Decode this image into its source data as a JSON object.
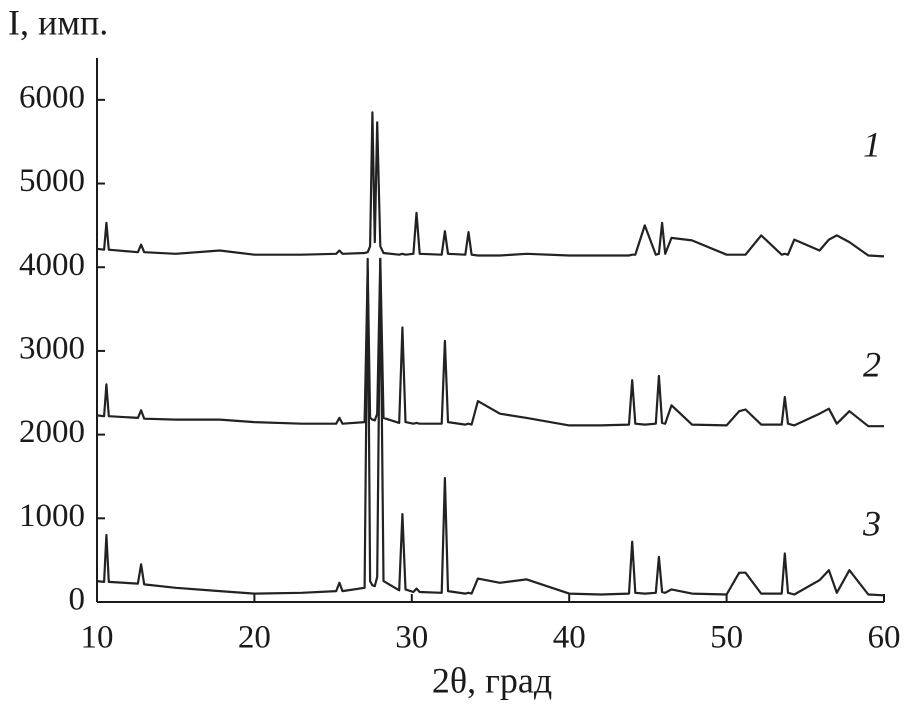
{
  "chart_data": {
    "type": "line",
    "y_label": "I, имп.",
    "x_label": "2θ, град",
    "xlim": [
      10,
      60
    ],
    "xticks": [
      10,
      20,
      30,
      40,
      50,
      60
    ],
    "ylim": [
      0,
      6500
    ],
    "yticks": [
      0,
      1000,
      2000,
      3000,
      4000,
      5000,
      6000
    ],
    "x": [
      10,
      10.45,
      10.6,
      10.75,
      12.6,
      12.8,
      13.0,
      15,
      17.8,
      20,
      23,
      25.2,
      25.4,
      25.6,
      27.0,
      27.2,
      27.35,
      27.5,
      27.65,
      27.8,
      28.0,
      28.2,
      29.2,
      29.4,
      29.6,
      30.1,
      30.3,
      30.5,
      31.9,
      32.1,
      32.3,
      33.4,
      33.6,
      33.8,
      34.2,
      35.6,
      37.3,
      40,
      42,
      43.8,
      44.0,
      44.2,
      44.8,
      45.5,
      45.7,
      45.9,
      46.1,
      46.5,
      47.8,
      50,
      50.8,
      51.2,
      52.2,
      53.5,
      53.7,
      53.9,
      54.3,
      55.9,
      56.5,
      57.0,
      57.8,
      59,
      60
    ],
    "series": [
      {
        "name": "1",
        "color": "#222222",
        "values": [
          4220,
          4210,
          4530,
          4210,
          4180,
          4270,
          4180,
          4160,
          4200,
          4150,
          4150,
          4160,
          4200,
          4160,
          4170,
          4180,
          4250,
          5850,
          4300,
          5730,
          4250,
          4170,
          4150,
          4160,
          4150,
          4160,
          4650,
          4160,
          4150,
          4430,
          4160,
          4150,
          4420,
          4150,
          4140,
          4140,
          4160,
          4140,
          4140,
          4140,
          4150,
          4150,
          4500,
          4150,
          4160,
          4530,
          4160,
          4350,
          4320,
          4150,
          4150,
          4150,
          4380,
          4150,
          4160,
          4150,
          4330,
          4200,
          4330,
          4380,
          4300,
          4140,
          4130
        ]
      },
      {
        "name": "2",
        "color": "#222222",
        "values": [
          2230,
          2220,
          2600,
          2220,
          2200,
          2290,
          2190,
          2180,
          2180,
          2150,
          2130,
          2130,
          2200,
          2130,
          2150,
          3980,
          2200,
          2180,
          2170,
          2250,
          4100,
          2200,
          2140,
          3280,
          2150,
          2130,
          2140,
          2130,
          2130,
          3120,
          2150,
          2120,
          2130,
          2120,
          2400,
          2250,
          2200,
          2110,
          2110,
          2120,
          2650,
          2130,
          2120,
          2130,
          2700,
          2140,
          2130,
          2350,
          2120,
          2110,
          2280,
          2300,
          2120,
          2120,
          2450,
          2130,
          2110,
          2250,
          2310,
          2130,
          2280,
          2100,
          2100
        ]
      },
      {
        "name": "3",
        "color": "#222222",
        "values": [
          250,
          240,
          800,
          240,
          220,
          450,
          210,
          170,
          130,
          100,
          110,
          130,
          230,
          130,
          170,
          4100,
          250,
          200,
          190,
          300,
          4100,
          250,
          140,
          1050,
          150,
          120,
          160,
          120,
          110,
          1480,
          130,
          100,
          110,
          100,
          280,
          230,
          270,
          100,
          90,
          100,
          720,
          110,
          100,
          110,
          540,
          120,
          110,
          150,
          100,
          90,
          350,
          350,
          100,
          100,
          580,
          110,
          90,
          260,
          380,
          110,
          380,
          90,
          80
        ]
      }
    ]
  }
}
